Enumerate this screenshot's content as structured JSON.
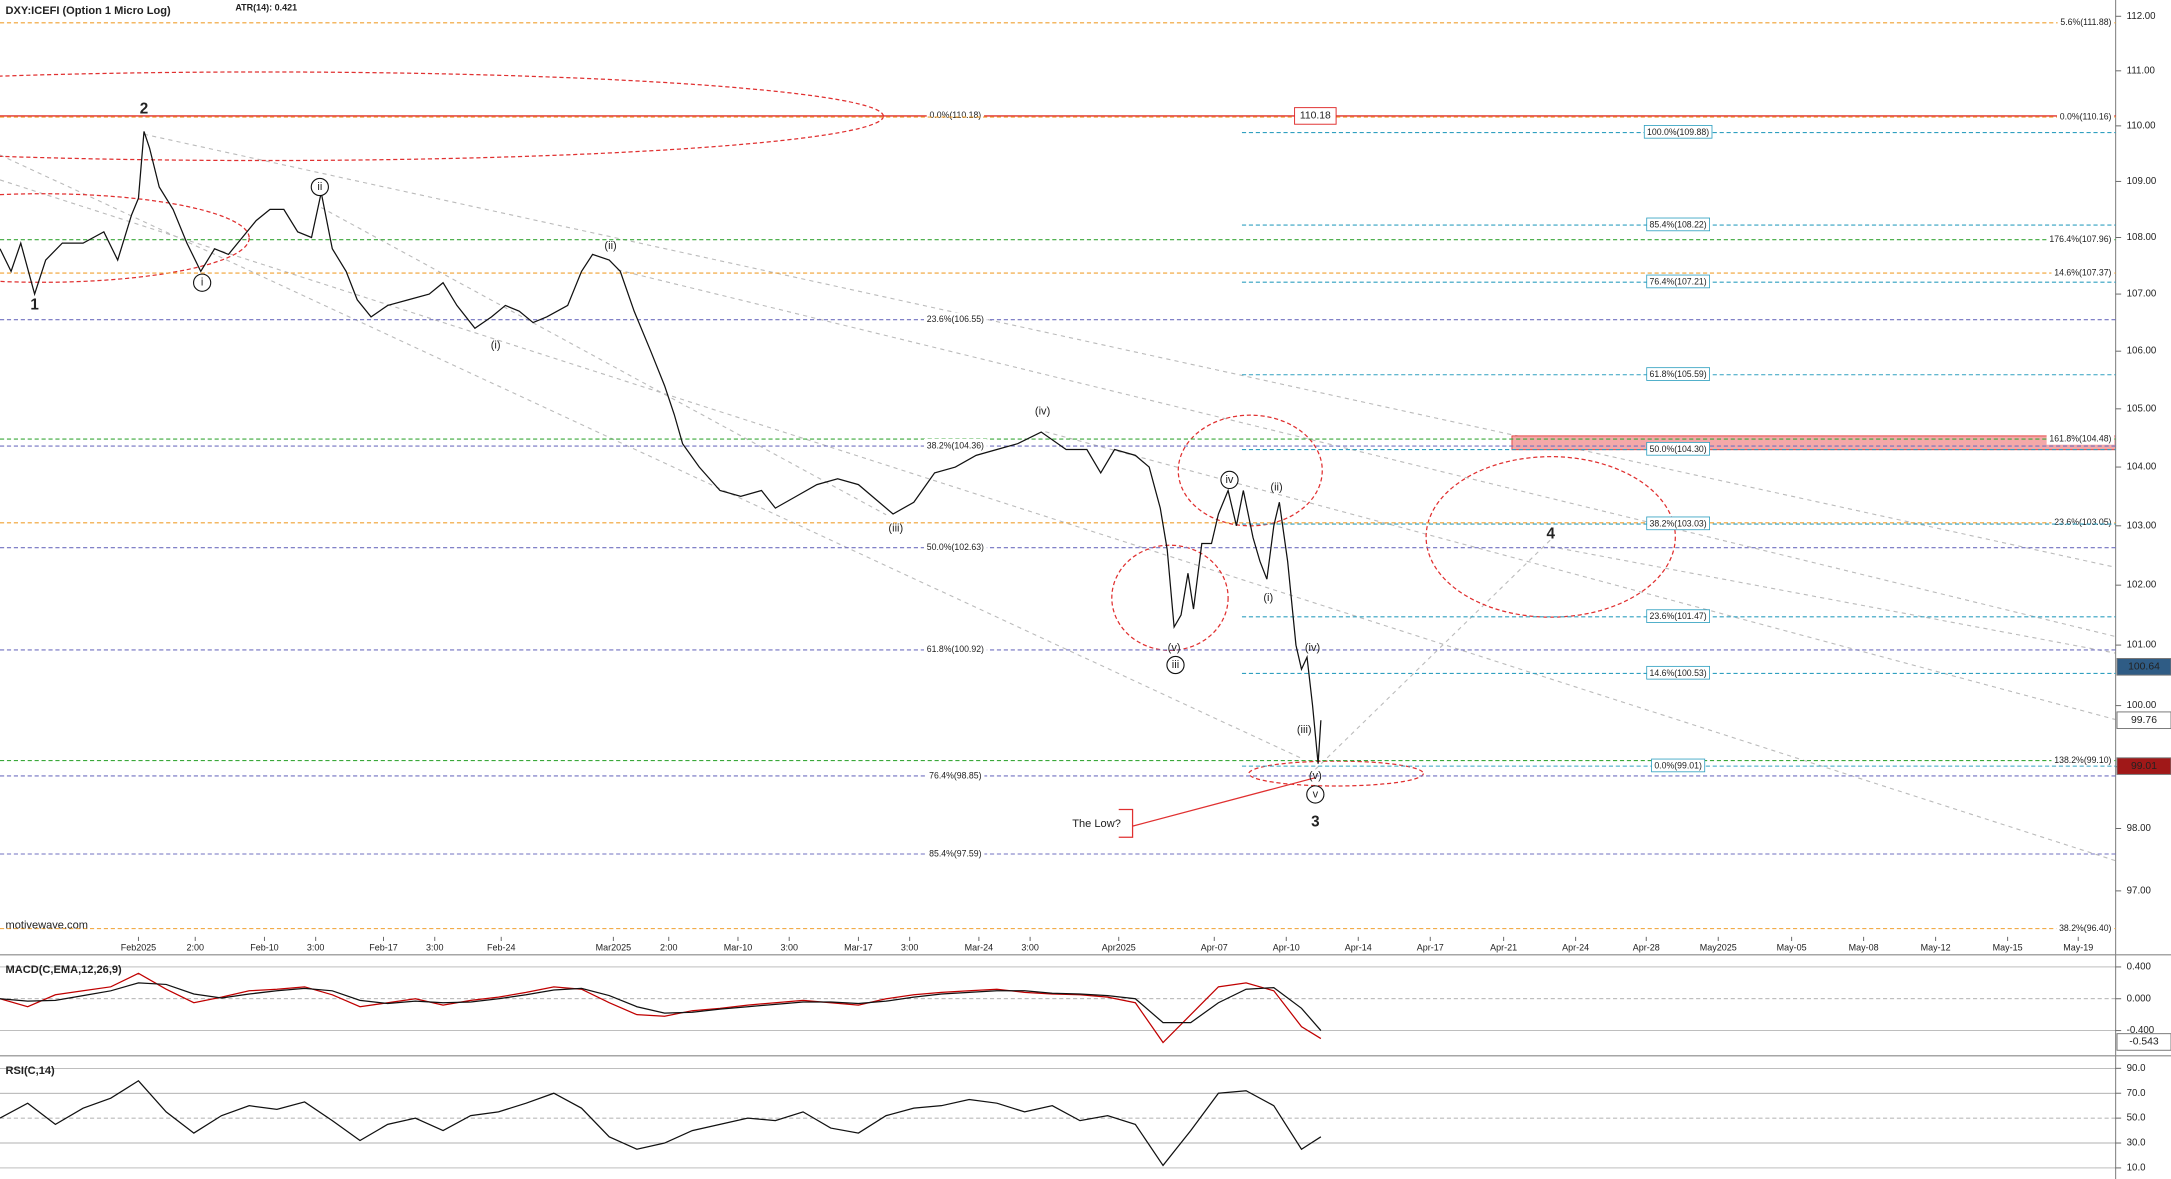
{
  "chart_data": [
    {
      "type": "line",
      "title": "DXY:ICEFI (Option 1 Micro Log)",
      "subtitle": "ATR(14): 0.421",
      "credit": "motivewave.com",
      "log_scale": true,
      "x": [
        0,
        8,
        15,
        25,
        33,
        45,
        60,
        75,
        85,
        95,
        100,
        104,
        108,
        115,
        125,
        135,
        145,
        155,
        165,
        175,
        185,
        195,
        205,
        215,
        225,
        232,
        240,
        250,
        258,
        268,
        280,
        295,
        310,
        320,
        330,
        343,
        355,
        365,
        375,
        385,
        395,
        410,
        420,
        428,
        440,
        448,
        458,
        470,
        480,
        487,
        493,
        505,
        520,
        535,
        550,
        560,
        575,
        590,
        605,
        620,
        635,
        645,
        660,
        675,
        690,
        705,
        720,
        735,
        752,
        770,
        785,
        795,
        805,
        820,
        830,
        838,
        843,
        848,
        853,
        858,
        862,
        868,
        875,
        880,
        887,
        893,
        898,
        905,
        910,
        915,
        920,
        924,
        930,
        936,
        940,
        944,
        948,
        952,
        954
      ],
      "series": [
        {
          "color": "#111111",
          "values": [
            107.8,
            107.4,
            107.9,
            107.0,
            107.6,
            107.9,
            107.9,
            108.1,
            107.6,
            108.4,
            108.7,
            109.9,
            109.6,
            108.9,
            108.5,
            107.9,
            107.4,
            107.8,
            107.7,
            108.0,
            108.3,
            108.5,
            108.5,
            108.1,
            108.0,
            108.8,
            107.8,
            107.4,
            106.9,
            106.6,
            106.8,
            106.9,
            107.0,
            107.2,
            106.8,
            106.4,
            106.6,
            106.8,
            106.7,
            106.5,
            106.6,
            106.8,
            107.4,
            107.7,
            107.6,
            107.4,
            106.7,
            106.0,
            105.4,
            104.9,
            104.4,
            104.0,
            103.6,
            103.5,
            103.6,
            103.3,
            103.5,
            103.7,
            103.8,
            103.7,
            103.4,
            103.2,
            103.4,
            103.9,
            104.0,
            104.2,
            104.3,
            104.4,
            104.6,
            104.3,
            104.3,
            103.9,
            104.3,
            104.2,
            104.0,
            103.3,
            102.6,
            101.3,
            101.5,
            102.2,
            101.6,
            102.7,
            102.7,
            103.2,
            103.6,
            103.0,
            103.6,
            102.8,
            102.4,
            102.1,
            103.0,
            103.4,
            102.4,
            101.0,
            100.6,
            100.8,
            100.0,
            99.05,
            99.76
          ]
        }
      ],
      "xlim": [
        0,
        1528
      ],
      "ylim": [
        96.27,
        112.3
      ],
      "yticks": [
        {
          "value": 97,
          "label": "97.00"
        },
        {
          "value": 98,
          "label": "98.00"
        },
        {
          "value": 99,
          "label": "99.00"
        },
        {
          "value": 100,
          "label": "100.00"
        },
        {
          "value": 101,
          "label": "101.00"
        },
        {
          "value": 102,
          "label": "102.00"
        },
        {
          "value": 103,
          "label": "103.00"
        },
        {
          "value": 104,
          "label": "104.00"
        },
        {
          "value": 105,
          "label": "105.00"
        },
        {
          "value": 106,
          "label": "106.00"
        },
        {
          "value": 107,
          "label": "107.00"
        },
        {
          "value": 108,
          "label": "108.00"
        },
        {
          "value": 109,
          "label": "109.00"
        },
        {
          "value": 110,
          "label": "110.00"
        },
        {
          "value": 111,
          "label": "111.00"
        },
        {
          "value": 112,
          "label": "112.00"
        }
      ],
      "xticks": [
        {
          "value": 100,
          "label": "Feb2025"
        },
        {
          "value": 141,
          "label": "2:00"
        },
        {
          "value": 191,
          "label": "Feb-10"
        },
        {
          "value": 228,
          "label": "3:00"
        },
        {
          "value": 277,
          "label": "Feb-17"
        },
        {
          "value": 314,
          "label": "3:00"
        },
        {
          "value": 362,
          "label": "Feb-24"
        },
        {
          "value": 443,
          "label": "Mar2025"
        },
        {
          "value": 483,
          "label": "2:00"
        },
        {
          "value": 533,
          "label": "Mar-10"
        },
        {
          "value": 570,
          "label": "3:00"
        },
        {
          "value": 620,
          "label": "Mar-17"
        },
        {
          "value": 657,
          "label": "3:00"
        },
        {
          "value": 707,
          "label": "Mar-24"
        },
        {
          "value": 744,
          "label": "3:00"
        },
        {
          "value": 808,
          "label": "Apr2025"
        },
        {
          "value": 877,
          "label": "Apr-07"
        },
        {
          "value": 929,
          "label": "Apr-10"
        },
        {
          "value": 981,
          "label": "Apr-14"
        },
        {
          "value": 1033,
          "label": "Apr-17"
        },
        {
          "value": 1086,
          "label": "Apr-21"
        },
        {
          "value": 1138,
          "label": "Apr-24"
        },
        {
          "value": 1189,
          "label": "Apr-28"
        },
        {
          "value": 1241,
          "label": "May2025"
        },
        {
          "value": 1294,
          "label": "May-05"
        },
        {
          "value": 1346,
          "label": "May-08"
        },
        {
          "value": 1398,
          "label": "May-12"
        },
        {
          "value": 1450,
          "label": "May-15"
        },
        {
          "value": 1501,
          "label": "May-19"
        }
      ],
      "levels": [
        {
          "label": "5.6%(111.88)",
          "value": 111.88,
          "color": "#f0a030",
          "anchor": "right"
        },
        {
          "label": "0.0%(110.18)",
          "value": 110.18,
          "color": "#e03030",
          "anchor": "middle",
          "solid": true
        },
        {
          "label": "0.0%(110.16)",
          "value": 110.16,
          "color": "#f0a030",
          "anchor": "right"
        },
        {
          "label": "176.4%(107.96)",
          "value": 107.96,
          "color": "#3aa83a",
          "anchor": "right"
        },
        {
          "label": "14.6%(107.37)",
          "value": 107.37,
          "color": "#f0a030",
          "anchor": "right"
        },
        {
          "label": "23.6%(106.55)",
          "value": 106.55,
          "color": "#7070c0",
          "anchor": "middle"
        },
        {
          "label": "161.8%(104.48)",
          "value": 104.48,
          "color": "#3aa83a",
          "anchor": "right"
        },
        {
          "label": "38.2%(104.36)",
          "value": 104.36,
          "color": "#7070c0",
          "anchor": "middle"
        },
        {
          "label": "23.6%(103.05)",
          "value": 103.05,
          "color": "#f0a030",
          "anchor": "right"
        },
        {
          "label": "50.0%(102.63)",
          "value": 102.63,
          "color": "#7070c0",
          "anchor": "middle"
        },
        {
          "label": "61.8%(100.92)",
          "value": 100.92,
          "color": "#7070c0",
          "anchor": "middle"
        },
        {
          "label": "138.2%(99.10)",
          "value": 99.1,
          "color": "#3aa83a",
          "anchor": "right"
        },
        {
          "label": "76.4%(98.85)",
          "value": 98.85,
          "color": "#7070c0",
          "anchor": "middle"
        },
        {
          "label": "85.4%(97.59)",
          "value": 97.59,
          "color": "#7070c0",
          "anchor": "middle"
        },
        {
          "label": "38.2%(96.40)",
          "value": 96.4,
          "color": "#f0a030",
          "anchor": "right"
        },
        {
          "label": "100.0%(109.88)",
          "value": 109.88,
          "color": "#30a0c0",
          "anchor": "box",
          "start": 897
        },
        {
          "label": "85.4%(108.22)",
          "value": 108.22,
          "color": "#30a0c0",
          "anchor": "box",
          "start": 897
        },
        {
          "label": "76.4%(107.21)",
          "value": 107.21,
          "color": "#30a0c0",
          "anchor": "box",
          "start": 897
        },
        {
          "label": "61.8%(105.59)",
          "value": 105.59,
          "color": "#30a0c0",
          "anchor": "box",
          "start": 897
        },
        {
          "label": "50.0%(104.30)",
          "value": 104.3,
          "color": "#30a0c0",
          "anchor": "box",
          "start": 897
        },
        {
          "label": "38.2%(103.03)",
          "value": 103.03,
          "color": "#30a0c0",
          "anchor": "box",
          "start": 897
        },
        {
          "label": "23.6%(101.47)",
          "value": 101.47,
          "color": "#30a0c0",
          "anchor": "box",
          "start": 897
        },
        {
          "label": "14.6%(100.53)",
          "value": 100.53,
          "color": "#30a0c0",
          "anchor": "box",
          "start": 897
        },
        {
          "label": "0.0%(99.01)",
          "value": 99.01,
          "color": "#30a0c0",
          "anchor": "box",
          "start": 897
        }
      ],
      "price_tags": [
        {
          "value": 110.18,
          "color": "#e03030",
          "anchor": "middle"
        },
        {
          "value": 100.64,
          "color": "#2f5c85",
          "anchor": "right"
        },
        {
          "value": 99.76,
          "color": "#ffffff",
          "anchor": "right"
        },
        {
          "value": 99.01,
          "color": "#a01818",
          "anchor": "right"
        }
      ],
      "annotations": [
        {
          "text": "1",
          "x": 25,
          "y": 106.8,
          "bold": true
        },
        {
          "text": "2",
          "x": 104,
          "y": 110.3,
          "bold": true
        },
        {
          "text": "i",
          "x": 146,
          "y": 107.2,
          "circled": true
        },
        {
          "text": "ii",
          "x": 231,
          "y": 108.9,
          "circled": true
        },
        {
          "text": "(i)",
          "x": 358,
          "y": 106.1
        },
        {
          "text": "(ii)",
          "x": 441,
          "y": 107.85
        },
        {
          "text": "(iii)",
          "x": 647,
          "y": 102.95
        },
        {
          "text": "(iv)",
          "x": 753,
          "y": 104.95
        },
        {
          "text": "(v)",
          "x": 848,
          "y": 100.95
        },
        {
          "text": "iii",
          "x": 849,
          "y": 100.67,
          "circled": true
        },
        {
          "text": "iv",
          "x": 888,
          "y": 103.78,
          "circled": true
        },
        {
          "text": "(ii)",
          "x": 922,
          "y": 103.65
        },
        {
          "text": "(i)",
          "x": 916,
          "y": 101.78
        },
        {
          "text": "(iv)",
          "x": 948,
          "y": 100.95
        },
        {
          "text": "(iii)",
          "x": 942,
          "y": 99.6
        },
        {
          "text": "(v)",
          "x": 950,
          "y": 98.85
        },
        {
          "text": "v",
          "x": 950,
          "y": 98.55,
          "circled": true
        },
        {
          "text": "3",
          "x": 950,
          "y": 98.1,
          "bold": true
        },
        {
          "text": "4",
          "x": 1120,
          "y": 102.85,
          "bold": true
        },
        {
          "text": "The Low?",
          "x": 792,
          "y": 98.07,
          "color": "#e03030"
        }
      ]
    },
    {
      "type": "line",
      "title": "MACD(C,EMA,12,26,9)",
      "x": [
        0,
        20,
        40,
        60,
        80,
        100,
        120,
        140,
        160,
        180,
        200,
        220,
        240,
        260,
        280,
        300,
        320,
        340,
        360,
        380,
        400,
        420,
        440,
        460,
        480,
        500,
        520,
        540,
        560,
        580,
        600,
        620,
        640,
        660,
        680,
        700,
        720,
        740,
        760,
        780,
        800,
        820,
        840,
        860,
        880,
        900,
        920,
        940,
        954
      ],
      "series": [
        {
          "color": "#c00000",
          "values": [
            0.0,
            -0.1,
            0.05,
            0.1,
            0.15,
            0.32,
            0.12,
            -0.05,
            0.02,
            0.1,
            0.12,
            0.15,
            0.05,
            -0.1,
            -0.05,
            0.0,
            -0.08,
            -0.02,
            0.02,
            0.08,
            0.15,
            0.12,
            -0.05,
            -0.2,
            -0.22,
            -0.15,
            -0.12,
            -0.08,
            -0.05,
            -0.02,
            -0.05,
            -0.08,
            0.0,
            0.05,
            0.08,
            0.1,
            0.12,
            0.08,
            0.06,
            0.05,
            0.02,
            -0.05,
            -0.55,
            -0.2,
            0.15,
            0.2,
            0.1,
            -0.35,
            -0.5
          ]
        },
        {
          "color": "#111111",
          "values": [
            0.0,
            -0.03,
            -0.02,
            0.04,
            0.1,
            0.2,
            0.18,
            0.06,
            0.01,
            0.06,
            0.1,
            0.13,
            0.1,
            -0.02,
            -0.06,
            -0.03,
            -0.05,
            -0.04,
            0.0,
            0.05,
            0.11,
            0.13,
            0.04,
            -0.1,
            -0.18,
            -0.17,
            -0.13,
            -0.1,
            -0.07,
            -0.04,
            -0.04,
            -0.06,
            -0.03,
            0.02,
            0.06,
            0.08,
            0.1,
            0.1,
            0.07,
            0.06,
            0.04,
            0.0,
            -0.3,
            -0.3,
            -0.05,
            0.12,
            0.14,
            -0.12,
            -0.4
          ]
        }
      ],
      "xlim": [
        0,
        1528
      ],
      "ylim": [
        -0.7,
        0.5
      ],
      "yticks": [
        {
          "value": 0.4,
          "label": "0.400"
        },
        {
          "value": 0,
          "label": "0.000"
        },
        {
          "value": -0.4,
          "label": "-0.400"
        }
      ],
      "grid": true,
      "price_tags": [
        {
          "value": -0.543,
          "color": "#ffffff",
          "anchor": "right"
        }
      ]
    },
    {
      "type": "line",
      "title": "RSI(C,14)",
      "x": [
        0,
        20,
        40,
        60,
        80,
        100,
        120,
        140,
        160,
        180,
        200,
        220,
        240,
        260,
        280,
        300,
        320,
        340,
        360,
        380,
        400,
        420,
        440,
        460,
        480,
        500,
        520,
        540,
        560,
        580,
        600,
        620,
        640,
        660,
        680,
        700,
        720,
        740,
        760,
        780,
        800,
        820,
        840,
        860,
        880,
        900,
        920,
        940,
        954
      ],
      "series": [
        {
          "color": "#111111",
          "values": [
            50,
            62,
            45,
            58,
            66,
            80,
            55,
            38,
            52,
            60,
            57,
            63,
            48,
            32,
            45,
            50,
            40,
            52,
            55,
            62,
            70,
            58,
            35,
            25,
            30,
            40,
            45,
            50,
            48,
            55,
            42,
            38,
            52,
            58,
            60,
            65,
            62,
            55,
            60,
            48,
            52,
            45,
            12,
            40,
            70,
            72,
            60,
            25,
            35
          ]
        }
      ],
      "xlim": [
        0,
        1528
      ],
      "ylim": [
        1.1,
        96.7
      ],
      "yticks": [
        {
          "value": 90,
          "label": "90.0"
        },
        {
          "value": 70,
          "label": "70.0"
        },
        {
          "value": 50,
          "label": "50.0"
        },
        {
          "value": 30,
          "label": "30.0"
        },
        {
          "value": 10,
          "label": "10.0"
        }
      ],
      "grid": true
    }
  ]
}
